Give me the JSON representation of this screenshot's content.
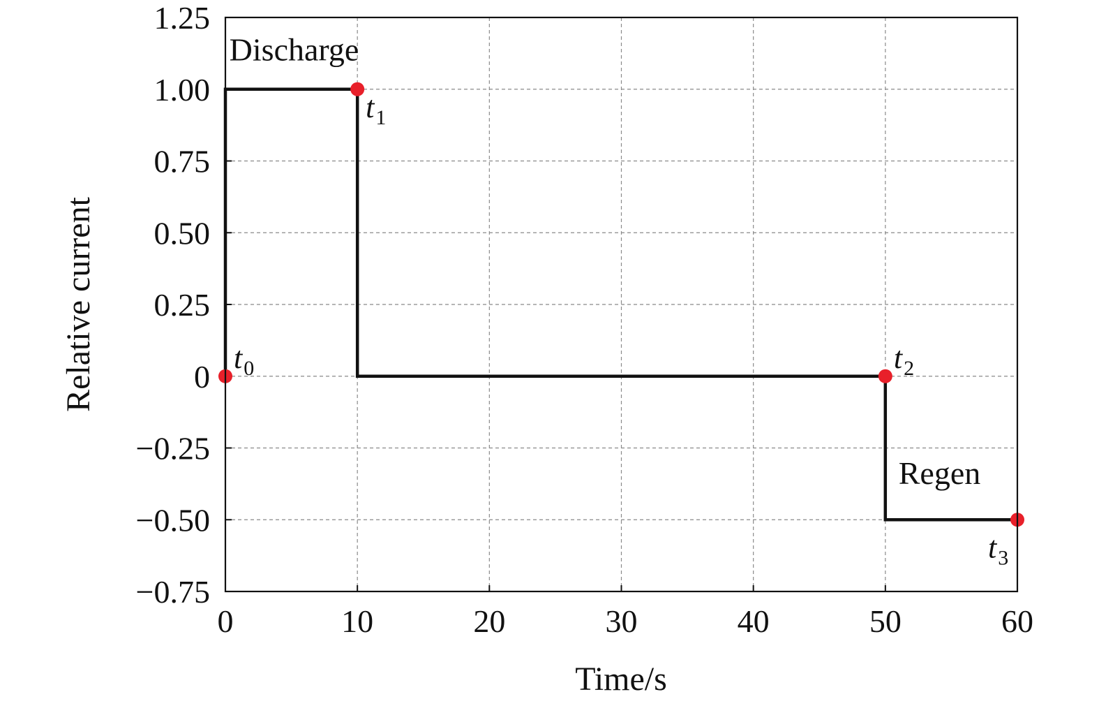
{
  "chart_data": {
    "type": "line",
    "xlabel": "Time/s",
    "ylabel": "Relative current",
    "xlim": [
      0,
      60
    ],
    "ylim": [
      -0.75,
      1.25
    ],
    "xticks": [
      0,
      10,
      20,
      30,
      40,
      50,
      60
    ],
    "xtick_labels": [
      "0",
      "10",
      "20",
      "30",
      "40",
      "50",
      "60"
    ],
    "yticks": [
      1.25,
      1.0,
      0.75,
      0.5,
      0.25,
      0,
      -0.25,
      -0.5,
      -0.75
    ],
    "ytick_labels": [
      "1.25",
      "1.00",
      "0.75",
      "0.50",
      "0.25",
      "0",
      "−0.25",
      "−0.50",
      "−0.75"
    ],
    "grid": true,
    "series": [
      {
        "style": "step",
        "color": "#111111",
        "x": [
          0,
          0,
          10,
          10,
          50,
          50,
          60
        ],
        "y": [
          0,
          1.0,
          1.0,
          0,
          0,
          -0.5,
          -0.5
        ]
      }
    ],
    "markers": [
      {
        "label": "t",
        "sub": "0",
        "x": 0,
        "y": 0,
        "label_pos": "upper-right"
      },
      {
        "label": "t",
        "sub": "1",
        "x": 10,
        "y": 1.0,
        "label_pos": "lower-right"
      },
      {
        "label": "t",
        "sub": "2",
        "x": 50,
        "y": 0,
        "label_pos": "upper-right"
      },
      {
        "label": "t",
        "sub": "3",
        "x": 60,
        "y": -0.5,
        "label_pos": "lower-left"
      }
    ],
    "marker_color": "#e8202a",
    "annotations": [
      {
        "text": "Discharge",
        "x": 0.3,
        "y": 1.1
      },
      {
        "text": "Regen",
        "x": 51,
        "y": -0.375
      }
    ]
  }
}
